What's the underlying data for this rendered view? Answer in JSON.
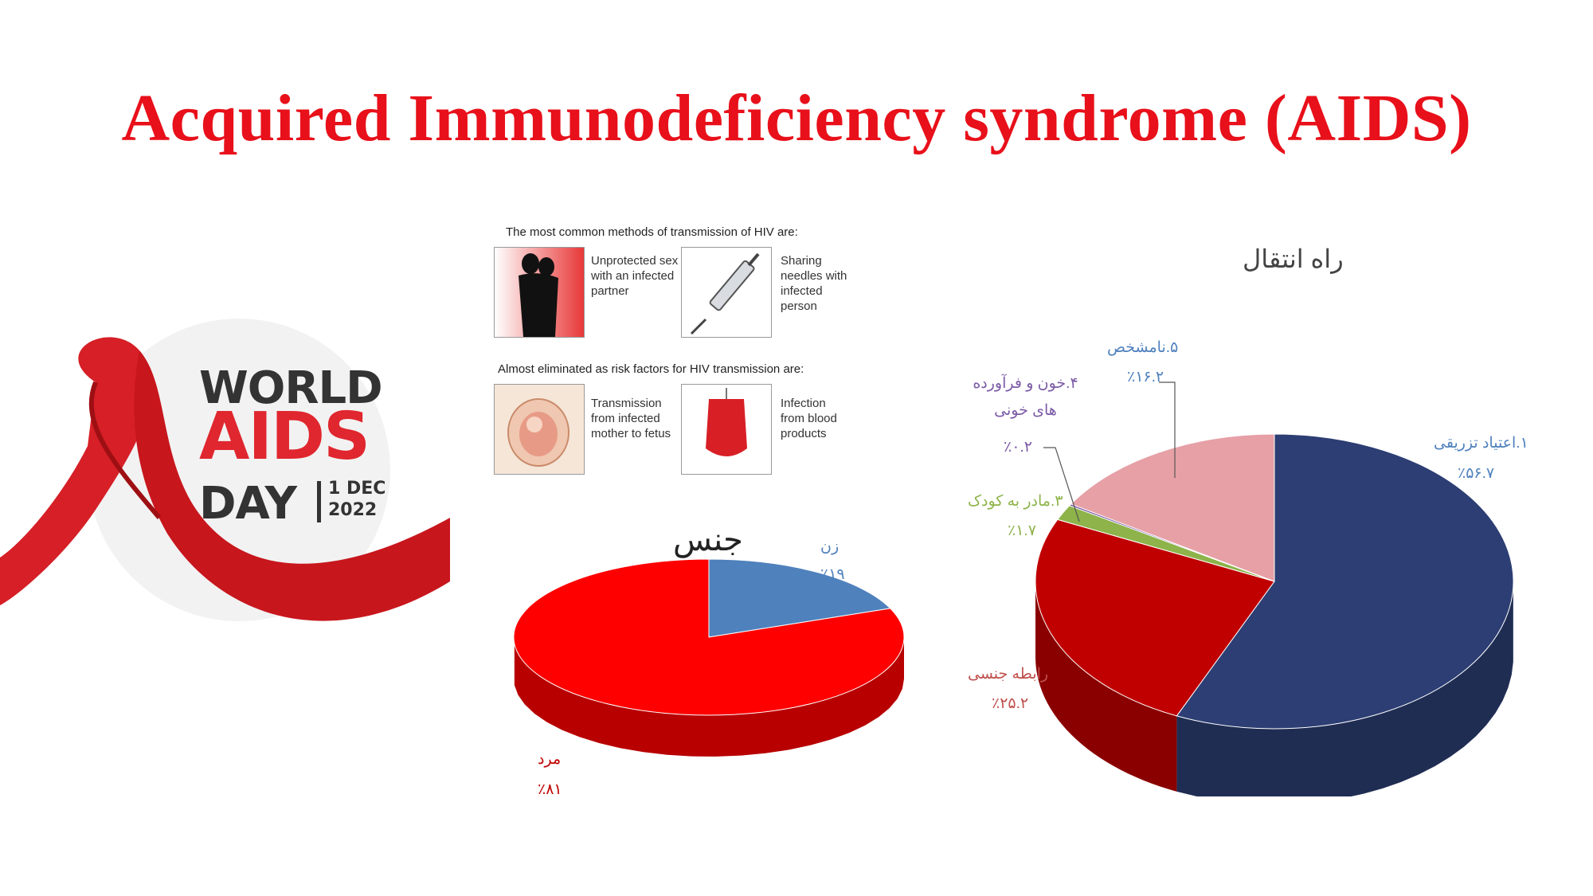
{
  "title": "Acquired Immunodeficiency syndrome (AIDS)",
  "logo": {
    "world": "WORLD",
    "aids": "AIDS",
    "day": "DAY",
    "date": "1 DEC",
    "year": "2022"
  },
  "transmission": {
    "common_heading": "The most common methods of transmission of HIV are:",
    "common": [
      {
        "label": "Unprotected sex with an infected partner",
        "icon": "couple-icon"
      },
      {
        "label": "Sharing needles with infected person",
        "icon": "syringe-icon"
      }
    ],
    "eliminated_heading": "Almost eliminated as risk factors for HIV transmission are:",
    "eliminated": [
      {
        "label": "Transmission from infected mother to fetus",
        "icon": "fetus-icon"
      },
      {
        "label": "Infection from blood products",
        "icon": "blood-bag-icon"
      }
    ]
  },
  "gender_chart": {
    "title": "جنس",
    "slices": [
      {
        "name": "زن",
        "value_label": "٪۱۹",
        "value": 19,
        "color": "#4f81bd"
      },
      {
        "name": "مرد",
        "value_label": "٪۸۱",
        "value": 81,
        "color": "#ff0000"
      }
    ]
  },
  "route_chart": {
    "title": "راه انتقال",
    "slices": [
      {
        "name": "۱.اعتیاد تزریقی",
        "value_label": "٪۵۶.۷",
        "value": 56.7,
        "color": "#2c3e73"
      },
      {
        "name": "رابطه جنسی",
        "value_label": "٪۲۵.۲",
        "value": 25.2,
        "color": "#c00000"
      },
      {
        "name": "۳.مادر به کودک",
        "value_label": "٪۱.۷",
        "value": 1.7,
        "color": "#8db34a"
      },
      {
        "name": "۴.خون و فرآورده های خونی",
        "value_label": "٪۰.۲",
        "value": 0.2,
        "color": "#7b5aa6"
      },
      {
        "name": "۵.نامشخص",
        "value_label": "٪۱۶.۲",
        "value": 16.2,
        "color": "#e6a0a6"
      }
    ]
  }
}
